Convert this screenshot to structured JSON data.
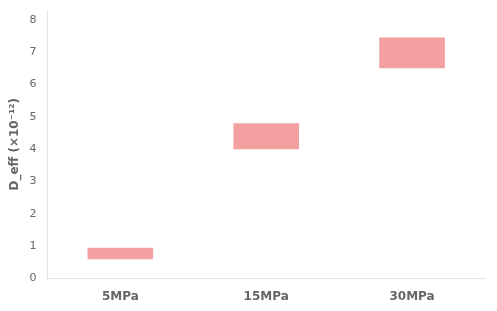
{
  "chart_data": {
    "type": "bar",
    "categories": [
      "5MPa",
      "15MPa",
      "30MPa"
    ],
    "values": [
      [
        0.6,
        0.95
      ],
      [
        4.0,
        4.8
      ],
      [
        6.5,
        7.45
      ]
    ],
    "color": "#f4a0a0",
    "ylabel": "D_eff (×10⁻¹²)",
    "ylim": [
      0,
      8.3
    ],
    "yticks": [
      0,
      1,
      2,
      3,
      4,
      5,
      6,
      7,
      8
    ],
    "grid": false
  }
}
